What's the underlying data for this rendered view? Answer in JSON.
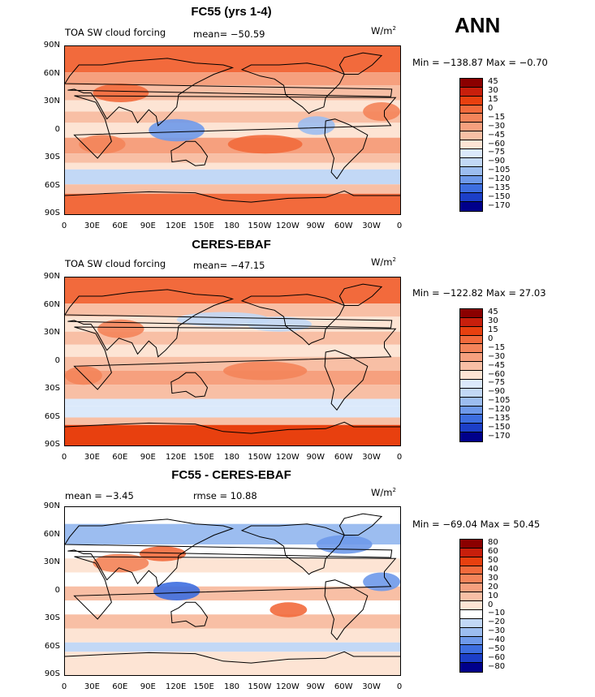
{
  "season": "ANN",
  "panels": [
    {
      "id": "model",
      "title": "FC55 (yrs 1-4)",
      "left_label": "TOA SW cloud forcing",
      "stat1": "mean=  −50.59",
      "stat2": "",
      "units": "W/m",
      "units_sup": "2",
      "minmax": "Min = −138.87  Max =  −0.70",
      "levels": [
        "45",
        "30",
        "15",
        "0",
        "−15",
        "−30",
        "−45",
        "−60",
        "−75",
        "−90",
        "−105",
        "−120",
        "−135",
        "−150",
        "−170"
      ],
      "colors": [
        "#8b0000",
        "#c81f0c",
        "#e8400f",
        "#f26a3c",
        "#f4845a",
        "#f6a07e",
        "#f8bfa5",
        "#fde4d4",
        "#dbe9fb",
        "#c2d8f6",
        "#9cbdf0",
        "#6e99ea",
        "#3d6ee0",
        "#1c3fc8",
        "#00008b"
      ]
    },
    {
      "id": "obs",
      "title": "CERES-EBAF",
      "left_label": "TOA SW cloud forcing",
      "stat1": "mean=  −47.15",
      "stat2": "",
      "units": "W/m",
      "units_sup": "2",
      "minmax": "Min = −122.82  Max =   27.03",
      "levels": [
        "45",
        "30",
        "15",
        "0",
        "−15",
        "−30",
        "−45",
        "−60",
        "−75",
        "−90",
        "−105",
        "−120",
        "−135",
        "−150",
        "−170"
      ],
      "colors": [
        "#8b0000",
        "#c81f0c",
        "#e8400f",
        "#f26a3c",
        "#f4845a",
        "#f6a07e",
        "#f8bfa5",
        "#fde4d4",
        "#dbe9fb",
        "#c2d8f6",
        "#9cbdf0",
        "#6e99ea",
        "#3d6ee0",
        "#1c3fc8",
        "#00008b"
      ]
    },
    {
      "id": "diff",
      "title": "FC55 - CERES-EBAF",
      "left_label": "",
      "stat1": "mean =   −3.45",
      "stat2": "rmse =   10.88",
      "units": "W/m",
      "units_sup": "2",
      "minmax": "Min = −69.04  Max =   50.45",
      "levels": [
        "80",
        "60",
        "50",
        "40",
        "30",
        "20",
        "10",
        "0",
        "−10",
        "−20",
        "−30",
        "−40",
        "−50",
        "−60",
        "−80"
      ],
      "colors": [
        "#8b0000",
        "#c81f0c",
        "#e8400f",
        "#f26a3c",
        "#f4845a",
        "#f6a07e",
        "#f8bfa5",
        "#fde4d4",
        "#ffffff",
        "#c2d8f6",
        "#9cbdf0",
        "#6e99ea",
        "#3d6ee0",
        "#1c3fc8",
        "#00008b"
      ]
    }
  ],
  "lat_ticks": [
    "90N",
    "60N",
    "30N",
    "0",
    "30S",
    "60S",
    "90S"
  ],
  "lon_ticks": [
    "0",
    "30E",
    "60E",
    "90E",
    "120E",
    "150E",
    "180",
    "150W",
    "120W",
    "90W",
    "60W",
    "30W",
    "0"
  ]
}
